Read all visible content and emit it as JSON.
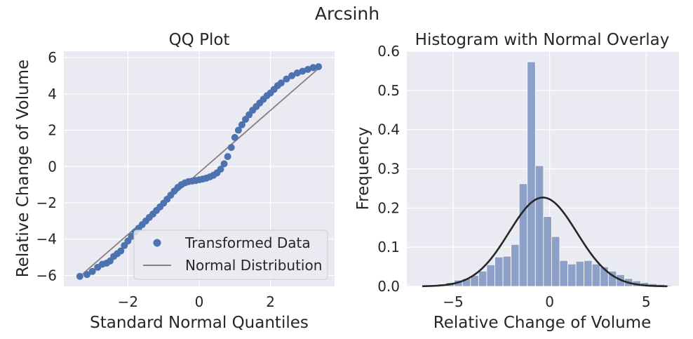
{
  "figure": {
    "suptitle": "Arcsinh"
  },
  "chart_data": [
    {
      "type": "scatter",
      "title": "QQ Plot",
      "xlabel": "Standard Normal Quantiles",
      "ylabel": "Relative Change of Volume",
      "xlim": [
        -3.8,
        3.8
      ],
      "ylim": [
        -6.6,
        6.35
      ],
      "xticks": [
        -2,
        0,
        2
      ],
      "yticks": [
        -6,
        -4,
        -2,
        0,
        2,
        4,
        6
      ],
      "grid": true,
      "legend_position": "lower-right",
      "series": [
        {
          "name": "Transformed Data",
          "kind": "points",
          "color": "#4c72b0",
          "points": [
            [
              -3.35,
              -6.05
            ],
            [
              -3.15,
              -5.95
            ],
            [
              -3.0,
              -5.78
            ],
            [
              -2.85,
              -5.55
            ],
            [
              -2.72,
              -5.38
            ],
            [
              -2.6,
              -5.32
            ],
            [
              -2.5,
              -5.2
            ],
            [
              -2.4,
              -4.95
            ],
            [
              -2.3,
              -4.8
            ],
            [
              -2.2,
              -4.65
            ],
            [
              -2.1,
              -4.35
            ],
            [
              -2.0,
              -4.1
            ],
            [
              -1.9,
              -3.85
            ],
            [
              -1.8,
              -3.6
            ],
            [
              -1.7,
              -3.4
            ],
            [
              -1.6,
              -3.2
            ],
            [
              -1.5,
              -3.0
            ],
            [
              -1.4,
              -2.8
            ],
            [
              -1.3,
              -2.62
            ],
            [
              -1.2,
              -2.42
            ],
            [
              -1.1,
              -2.22
            ],
            [
              -1.0,
              -2.02
            ],
            [
              -0.9,
              -1.8
            ],
            [
              -0.8,
              -1.58
            ],
            [
              -0.7,
              -1.35
            ],
            [
              -0.6,
              -1.15
            ],
            [
              -0.5,
              -1.0
            ],
            [
              -0.4,
              -0.9
            ],
            [
              -0.3,
              -0.83
            ],
            [
              -0.2,
              -0.8
            ],
            [
              -0.1,
              -0.77
            ],
            [
              0.0,
              -0.73
            ],
            [
              0.1,
              -0.69
            ],
            [
              0.2,
              -0.64
            ],
            [
              0.3,
              -0.57
            ],
            [
              0.4,
              -0.48
            ],
            [
              0.5,
              -0.35
            ],
            [
              0.6,
              -0.15
            ],
            [
              0.7,
              0.15
            ],
            [
              0.8,
              0.55
            ],
            [
              0.9,
              1.05
            ],
            [
              1.0,
              1.6
            ],
            [
              1.1,
              2.0
            ],
            [
              1.2,
              2.3
            ],
            [
              1.3,
              2.6
            ],
            [
              1.4,
              2.85
            ],
            [
              1.5,
              3.1
            ],
            [
              1.6,
              3.3
            ],
            [
              1.7,
              3.5
            ],
            [
              1.8,
              3.7
            ],
            [
              1.9,
              3.9
            ],
            [
              2.0,
              4.05
            ],
            [
              2.1,
              4.25
            ],
            [
              2.2,
              4.45
            ],
            [
              2.3,
              4.6
            ],
            [
              2.45,
              4.82
            ],
            [
              2.6,
              5.0
            ],
            [
              2.75,
              5.15
            ],
            [
              2.9,
              5.25
            ],
            [
              3.05,
              5.35
            ],
            [
              3.2,
              5.45
            ],
            [
              3.35,
              5.5
            ]
          ]
        },
        {
          "name": "Normal Distribution",
          "kind": "line",
          "color": "#8c7e7e",
          "points": [
            [
              -3.35,
              -6.05
            ],
            [
              3.35,
              5.4
            ]
          ]
        }
      ]
    },
    {
      "type": "bar",
      "title": "Histogram with Normal Overlay",
      "xlabel": "Relative Change of Volume",
      "ylabel": "Frequency",
      "xlim": [
        -7.4,
        6.7
      ],
      "ylim": [
        0,
        0.6
      ],
      "xticks": [
        -5,
        0,
        5
      ],
      "yticks": [
        0.0,
        0.1,
        0.2,
        0.3,
        0.4,
        0.5,
        0.6
      ],
      "grid": true,
      "bar_color": "#8da0c7",
      "curve_color": "#262626",
      "bins": [
        {
          "x0": -6.62,
          "x1": -6.2,
          "value": 0.002
        },
        {
          "x0": -6.2,
          "x1": -5.78,
          "value": 0.004
        },
        {
          "x0": -5.78,
          "x1": -5.36,
          "value": 0.006
        },
        {
          "x0": -5.36,
          "x1": -4.94,
          "value": 0.01
        },
        {
          "x0": -4.94,
          "x1": -4.52,
          "value": 0.016
        },
        {
          "x0": -4.52,
          "x1": -4.1,
          "value": 0.02
        },
        {
          "x0": -4.1,
          "x1": -3.68,
          "value": 0.028
        },
        {
          "x0": -3.68,
          "x1": -3.26,
          "value": 0.039
        },
        {
          "x0": -3.26,
          "x1": -2.84,
          "value": 0.055
        },
        {
          "x0": -2.84,
          "x1": -2.42,
          "value": 0.075
        },
        {
          "x0": -2.42,
          "x1": -2.0,
          "value": 0.077
        },
        {
          "x0": -2.0,
          "x1": -1.58,
          "value": 0.107
        },
        {
          "x0": -1.58,
          "x1": -1.16,
          "value": 0.262
        },
        {
          "x0": -1.16,
          "x1": -0.74,
          "value": 0.573
        },
        {
          "x0": -0.74,
          "x1": -0.32,
          "value": 0.308
        },
        {
          "x0": -0.32,
          "x1": 0.1,
          "value": 0.178
        },
        {
          "x0": 0.1,
          "x1": 0.52,
          "value": 0.127
        },
        {
          "x0": 0.52,
          "x1": 0.94,
          "value": 0.066
        },
        {
          "x0": 0.94,
          "x1": 1.36,
          "value": 0.057
        },
        {
          "x0": 1.36,
          "x1": 1.78,
          "value": 0.064
        },
        {
          "x0": 1.78,
          "x1": 2.2,
          "value": 0.066
        },
        {
          "x0": 2.2,
          "x1": 2.62,
          "value": 0.057
        },
        {
          "x0": 2.62,
          "x1": 3.04,
          "value": 0.05
        },
        {
          "x0": 3.04,
          "x1": 3.46,
          "value": 0.039
        },
        {
          "x0": 3.46,
          "x1": 3.88,
          "value": 0.03
        },
        {
          "x0": 3.88,
          "x1": 4.3,
          "value": 0.02
        },
        {
          "x0": 4.3,
          "x1": 4.72,
          "value": 0.014
        },
        {
          "x0": 4.72,
          "x1": 5.14,
          "value": 0.01
        },
        {
          "x0": 5.14,
          "x1": 5.56,
          "value": 0.007
        },
        {
          "x0": 5.56,
          "x1": 5.98,
          "value": 0.005
        },
        {
          "x0": 5.98,
          "x1": 6.3,
          "value": 0.003
        }
      ],
      "normal_curve": {
        "mean": -0.35,
        "std": 1.76,
        "x_range": [
          -6.6,
          6.1
        ]
      }
    }
  ]
}
